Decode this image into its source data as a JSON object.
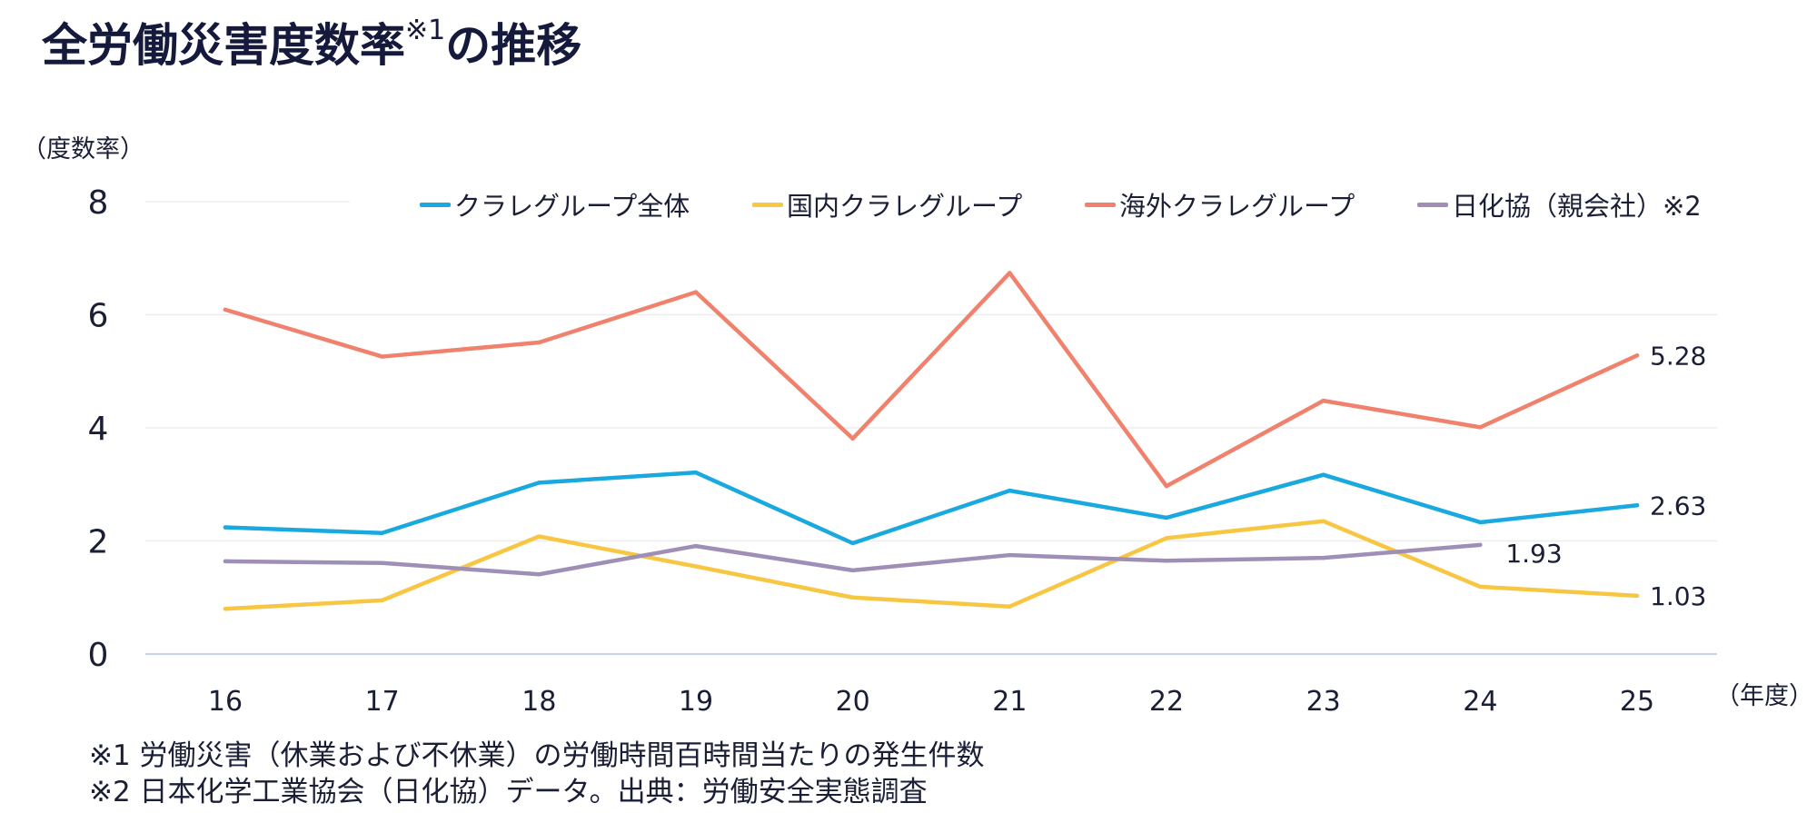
{
  "title": {
    "main": "全労働災害度数率",
    "sup": "※1",
    "tail": "の推移"
  },
  "y_unit": "（度数率）",
  "x_unit": "（年度）",
  "notes": [
    "※1 労働災害（休業および不休業）の労働時間百時間当たりの発生件数",
    "※2 日本化学工業協会（日化協）データ。出典：労働安全実態調査"
  ],
  "chart_data": {
    "type": "line",
    "categories": [
      "16",
      "17",
      "18",
      "19",
      "20",
      "21",
      "22",
      "23",
      "24",
      "25"
    ],
    "yticks": [
      "0",
      "2",
      "4",
      "6",
      "8"
    ],
    "ylim": [
      0,
      8
    ],
    "grid": true,
    "legend_position": "top",
    "series": [
      {
        "name": "クラレグループ全体",
        "color": "#1aa9df",
        "values": [
          2.24,
          2.14,
          3.03,
          3.21,
          1.96,
          2.89,
          2.41,
          3.17,
          2.33,
          2.63
        ],
        "end_label": "2.63"
      },
      {
        "name": "国内クラレグループ",
        "color": "#f7c643",
        "values": [
          0.8,
          0.95,
          2.08,
          1.55,
          1.0,
          0.84,
          2.05,
          2.35,
          1.19,
          1.03
        ],
        "end_label": "1.03"
      },
      {
        "name": "海外クラレグループ",
        "color": "#f0826d",
        "values": [
          6.09,
          5.26,
          5.51,
          6.4,
          3.81,
          6.74,
          2.97,
          4.48,
          4.01,
          5.28
        ],
        "end_label": "5.28"
      },
      {
        "name": "日化協（親会社）※2",
        "color": "#9f8fb6",
        "values": [
          1.64,
          1.61,
          1.41,
          1.91,
          1.48,
          1.75,
          1.65,
          1.7,
          1.93,
          null
        ],
        "end_label": "1.93"
      }
    ]
  }
}
